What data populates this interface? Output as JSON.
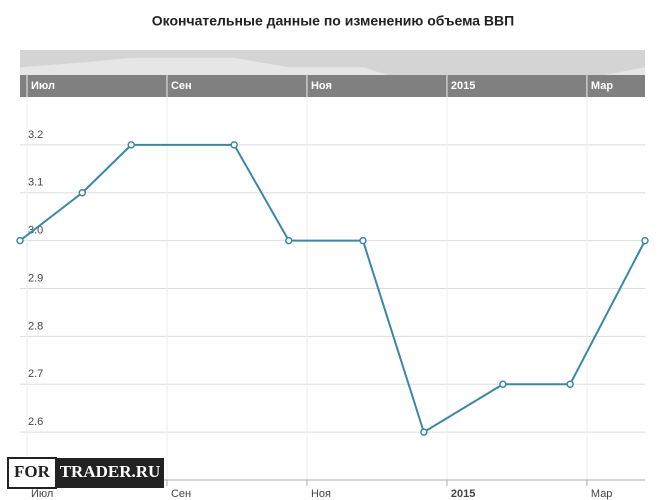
{
  "chart_data": {
    "type": "line",
    "title": "Окончательные данные по изменению объема ВВП",
    "x": [
      -0.1,
      0.79,
      1.49,
      2.96,
      3.74,
      4.8,
      5.67,
      6.8,
      7.76,
      8.83
    ],
    "series": [
      {
        "color": "#3a87a8",
        "values": [
          3.0,
          3.1,
          3.2,
          3.2,
          3.0,
          3.0,
          2.6,
          2.7,
          2.7,
          3.0
        ]
      }
    ],
    "xlim": [
      -0.1,
      8.83
    ],
    "xticks": [
      {
        "value": 0,
        "label": "Июл"
      },
      {
        "value": 2,
        "label": "Сен"
      },
      {
        "value": 4,
        "label": "Ноя"
      },
      {
        "value": 6,
        "label": "2015"
      },
      {
        "value": 8,
        "label": "Мар"
      }
    ],
    "ylim": [
      2.5,
      3.3
    ],
    "yticks": [
      2.6,
      2.7,
      2.8,
      2.9,
      {
        "value": 3,
        "label": "3.0"
      },
      3.1,
      3.2
    ],
    "grid": true,
    "watermark": [
      "FOR",
      "TRADER.RU"
    ]
  }
}
